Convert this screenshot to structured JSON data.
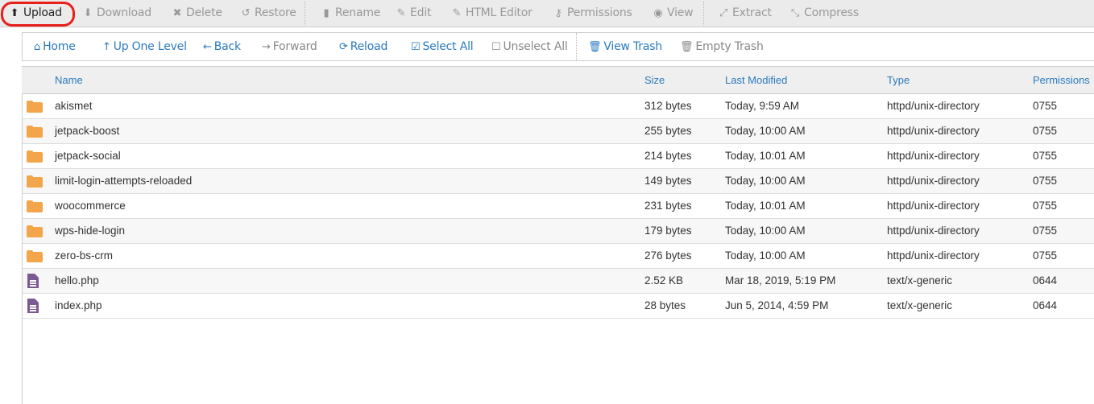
{
  "toolbar": [
    {
      "label": "Upload",
      "icon": "upload-icon",
      "glyph": "⬆",
      "active": true
    },
    {
      "label": "Download",
      "icon": "download-icon",
      "glyph": "⬇"
    },
    {
      "label": "Delete",
      "icon": "close-icon",
      "glyph": "✖"
    },
    {
      "label": "Restore",
      "icon": "undo-icon",
      "glyph": "↺"
    },
    {
      "label": "Rename",
      "icon": "file-icon",
      "glyph": "▮"
    },
    {
      "label": "Edit",
      "icon": "pencil-icon",
      "glyph": "✎"
    },
    {
      "label": "HTML Editor",
      "icon": "edit-square-icon",
      "glyph": "✎"
    },
    {
      "label": "Permissions",
      "icon": "key-icon",
      "glyph": "⚷"
    },
    {
      "label": "View",
      "icon": "eye-icon",
      "glyph": "◉"
    },
    {
      "label": "Extract",
      "icon": "expand-icon",
      "glyph": "⤢"
    },
    {
      "label": "Compress",
      "icon": "compress-icon",
      "glyph": "⤡"
    }
  ],
  "nav": [
    {
      "label": "Home",
      "icon": "home-icon",
      "glyph": "⌂"
    },
    {
      "label": "Up One Level",
      "icon": "level-up-icon",
      "glyph": "↑"
    },
    {
      "label": "Back",
      "icon": "arrow-left-icon",
      "glyph": "←"
    },
    {
      "label": "Forward",
      "icon": "arrow-right-icon",
      "glyph": "→",
      "disabled": true
    },
    {
      "label": "Reload",
      "icon": "refresh-icon",
      "glyph": "⟳"
    },
    {
      "label": "Select All",
      "icon": "checked-box-icon",
      "glyph": "☑"
    },
    {
      "label": "Unselect All",
      "icon": "empty-box-icon",
      "glyph": "☐",
      "disabled": true
    },
    {
      "label": "View Trash",
      "icon": "trash-icon",
      "glyph": "🗑"
    },
    {
      "label": "Empty Trash",
      "icon": "trash-icon",
      "glyph": "🗑",
      "disabled": true
    }
  ],
  "columns": {
    "name": "Name",
    "size": "Size",
    "modified": "Last Modified",
    "type": "Type",
    "perms": "Permissions"
  },
  "files": [
    {
      "kind": "folder",
      "name": "akismet",
      "size": "312 bytes",
      "modified": "Today, 9:59 AM",
      "type": "httpd/unix-directory",
      "perms": "0755"
    },
    {
      "kind": "folder",
      "name": "jetpack-boost",
      "size": "255 bytes",
      "modified": "Today, 10:00 AM",
      "type": "httpd/unix-directory",
      "perms": "0755"
    },
    {
      "kind": "folder",
      "name": "jetpack-social",
      "size": "214 bytes",
      "modified": "Today, 10:01 AM",
      "type": "httpd/unix-directory",
      "perms": "0755"
    },
    {
      "kind": "folder",
      "name": "limit-login-attempts-reloaded",
      "size": "149 bytes",
      "modified": "Today, 10:00 AM",
      "type": "httpd/unix-directory",
      "perms": "0755"
    },
    {
      "kind": "folder",
      "name": "woocommerce",
      "size": "231 bytes",
      "modified": "Today, 10:01 AM",
      "type": "httpd/unix-directory",
      "perms": "0755"
    },
    {
      "kind": "folder",
      "name": "wps-hide-login",
      "size": "179 bytes",
      "modified": "Today, 10:00 AM",
      "type": "httpd/unix-directory",
      "perms": "0755"
    },
    {
      "kind": "folder",
      "name": "zero-bs-crm",
      "size": "276 bytes",
      "modified": "Today, 10:00 AM",
      "type": "httpd/unix-directory",
      "perms": "0755"
    },
    {
      "kind": "file",
      "name": "hello.php",
      "size": "2.52 KB",
      "modified": "Mar 18, 2019, 5:19 PM",
      "type": "text/x-generic",
      "perms": "0644"
    },
    {
      "kind": "file",
      "name": "index.php",
      "size": "28 bytes",
      "modified": "Jun 5, 2014, 4:59 PM",
      "type": "text/x-generic",
      "perms": "0644"
    }
  ],
  "colors": {
    "link": "#2a7abf",
    "folder": "#f2a54a",
    "file": "#7b5a94",
    "highlight": "#e8201b"
  }
}
